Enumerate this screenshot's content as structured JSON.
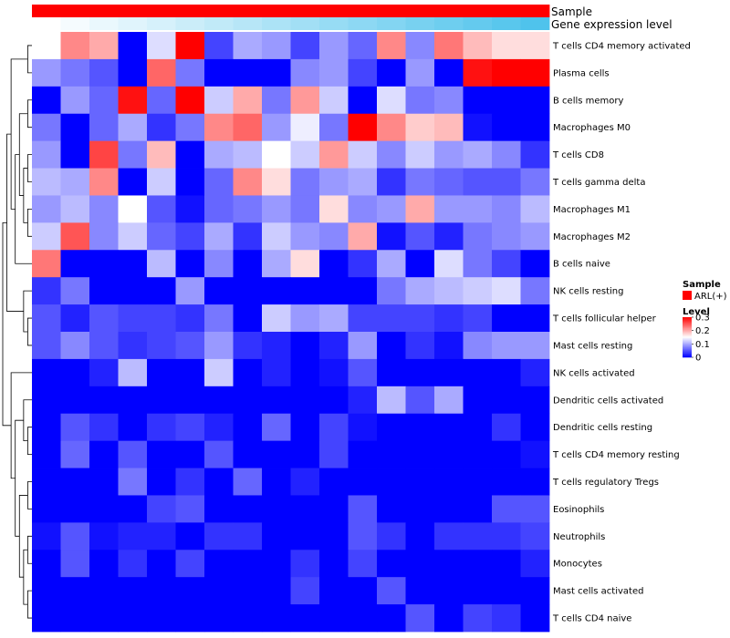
{
  "chart_data": {
    "type": "heatmap",
    "annotations": [
      {
        "label": "Sample",
        "kind": "solid",
        "color": "#ff0000"
      },
      {
        "label": "Gene expression level",
        "kind": "gradient",
        "from": "#ffffff",
        "to": "#4fc3ec"
      }
    ],
    "rows": [
      "T cells CD4 memory activated",
      "Plasma cells",
      "B cells memory",
      "Macrophages M0",
      "T cells CD8",
      "T cells gamma delta",
      "Macrophages M1",
      "Macrophages M2",
      "B cells naive",
      "NK cells resting",
      "T cells follicular helper",
      "Mast cells resting",
      "NK cells activated",
      "Dendritic cells activated",
      "Dendritic cells resting",
      "T cells CD4 memory resting",
      "T cells regulatory  Tregs",
      "Eosinophils",
      "Neutrophils",
      "Monocytes",
      "Mast cells activated",
      "T cells CD4 naive"
    ],
    "n_columns": 18,
    "values": [
      [
        0.15,
        0.22,
        0.2,
        0.0,
        0.13,
        0.3,
        0.04,
        0.1,
        0.09,
        0.04,
        0.09,
        0.06,
        0.22,
        0.08,
        0.23,
        0.19,
        0.17,
        0.17
      ],
      [
        0.09,
        0.07,
        0.05,
        0.0,
        0.24,
        0.07,
        0.0,
        0.0,
        0.0,
        0.08,
        0.09,
        0.04,
        0.0,
        0.09,
        0.0,
        0.29,
        0.3,
        0.3
      ],
      [
        0.0,
        0.09,
        0.06,
        0.29,
        0.06,
        0.3,
        0.12,
        0.2,
        0.07,
        0.21,
        0.12,
        0.0,
        0.13,
        0.07,
        0.08,
        0.0,
        0.0,
        0.0
      ],
      [
        0.07,
        0.0,
        0.06,
        0.1,
        0.03,
        0.07,
        0.22,
        0.24,
        0.09,
        0.14,
        0.07,
        0.3,
        0.22,
        0.18,
        0.19,
        0.01,
        0.0,
        0.0
      ],
      [
        0.09,
        0.0,
        0.26,
        0.07,
        0.19,
        0.0,
        0.1,
        0.11,
        0.15,
        0.12,
        0.21,
        0.12,
        0.08,
        0.12,
        0.09,
        0.1,
        0.08,
        0.03
      ],
      [
        0.11,
        0.1,
        0.22,
        0.0,
        0.12,
        0.0,
        0.06,
        0.22,
        0.17,
        0.07,
        0.09,
        0.1,
        0.03,
        0.07,
        0.06,
        0.05,
        0.05,
        0.07
      ],
      [
        0.09,
        0.11,
        0.08,
        0.15,
        0.05,
        0.01,
        0.06,
        0.07,
        0.09,
        0.07,
        0.17,
        0.08,
        0.09,
        0.2,
        0.09,
        0.09,
        0.08,
        0.11
      ],
      [
        0.12,
        0.25,
        0.08,
        0.12,
        0.06,
        0.04,
        0.1,
        0.03,
        0.12,
        0.09,
        0.08,
        0.2,
        0.01,
        0.05,
        0.02,
        0.07,
        0.08,
        0.09
      ],
      [
        0.23,
        0.0,
        0.0,
        0.0,
        0.11,
        0.0,
        0.08,
        0.0,
        0.1,
        0.17,
        0.0,
        0.03,
        0.1,
        0.0,
        0.13,
        0.07,
        0.04,
        0.0
      ],
      [
        0.03,
        0.07,
        0.0,
        0.0,
        0.0,
        0.09,
        0.0,
        0.0,
        0.0,
        0.0,
        0.0,
        0.0,
        0.07,
        0.1,
        0.11,
        0.12,
        0.13,
        0.07
      ],
      [
        0.05,
        0.02,
        0.05,
        0.04,
        0.04,
        0.03,
        0.07,
        0.0,
        0.12,
        0.09,
        0.1,
        0.04,
        0.04,
        0.04,
        0.03,
        0.04,
        0.0,
        0.0
      ],
      [
        0.05,
        0.08,
        0.05,
        0.03,
        0.04,
        0.05,
        0.09,
        0.03,
        0.02,
        0.0,
        0.02,
        0.09,
        0.0,
        0.03,
        0.01,
        0.08,
        0.09,
        0.09
      ],
      [
        0.0,
        0.0,
        0.02,
        0.11,
        0.0,
        0.0,
        0.12,
        0.0,
        0.02,
        0.0,
        0.01,
        0.05,
        0.0,
        0.0,
        0.0,
        0.0,
        0.0,
        0.02
      ],
      [
        0.0,
        0.0,
        0.0,
        0.0,
        0.0,
        0.0,
        0.0,
        0.0,
        0.0,
        0.0,
        0.0,
        0.02,
        0.11,
        0.05,
        0.1,
        0.0,
        0.0,
        0.0
      ],
      [
        0.0,
        0.05,
        0.03,
        0.0,
        0.03,
        0.04,
        0.02,
        0.0,
        0.06,
        0.0,
        0.04,
        0.01,
        0.0,
        0.0,
        0.0,
        0.0,
        0.03,
        0.0
      ],
      [
        0.0,
        0.06,
        0.0,
        0.05,
        0.0,
        0.0,
        0.05,
        0.0,
        0.0,
        0.0,
        0.04,
        0.0,
        0.0,
        0.0,
        0.0,
        0.0,
        0.0,
        0.01
      ],
      [
        0.0,
        0.0,
        0.0,
        0.07,
        0.0,
        0.03,
        0.0,
        0.06,
        0.0,
        0.02,
        0.0,
        0.0,
        0.0,
        0.0,
        0.0,
        0.0,
        0.0,
        0.0
      ],
      [
        0.0,
        0.0,
        0.0,
        0.0,
        0.04,
        0.05,
        0.0,
        0.0,
        0.0,
        0.0,
        0.0,
        0.05,
        0.0,
        0.0,
        0.0,
        0.0,
        0.05,
        0.05
      ],
      [
        0.01,
        0.05,
        0.01,
        0.02,
        0.02,
        0.0,
        0.03,
        0.03,
        0.0,
        0.0,
        0.0,
        0.05,
        0.03,
        0.0,
        0.03,
        0.03,
        0.03,
        0.04
      ],
      [
        0.0,
        0.05,
        0.0,
        0.03,
        0.0,
        0.04,
        0.0,
        0.0,
        0.0,
        0.03,
        0.0,
        0.04,
        0.0,
        0.0,
        0.0,
        0.0,
        0.0,
        0.02
      ],
      [
        0.0,
        0.0,
        0.0,
        0.0,
        0.0,
        0.0,
        0.0,
        0.0,
        0.0,
        0.04,
        0.0,
        0.0,
        0.05,
        0.0,
        0.0,
        0.0,
        0.0,
        0.0
      ],
      [
        0.0,
        0.0,
        0.0,
        0.0,
        0.0,
        0.0,
        0.0,
        0.0,
        0.0,
        0.0,
        0.0,
        0.0,
        0.0,
        0.05,
        0.0,
        0.04,
        0.03,
        0.0
      ]
    ],
    "color_scale": {
      "min": 0,
      "mid": 0.15,
      "max": 0.3,
      "low": "#0000ff",
      "mid_color": "#ffffff",
      "high": "#ff0000"
    },
    "legend": {
      "sample_title": "Sample",
      "sample_entry": "ARL(+)",
      "sample_color": "#ff0000",
      "level_title": "Level",
      "level_ticks": [
        {
          "value": 0.3,
          "label": "0.3"
        },
        {
          "value": 0.2,
          "label": "0.2"
        },
        {
          "value": 0.1,
          "label": "0.1"
        },
        {
          "value": 0,
          "label": "0"
        }
      ],
      "placement": "right"
    },
    "dendrogram": "row-hierarchical-clustering-left"
  }
}
